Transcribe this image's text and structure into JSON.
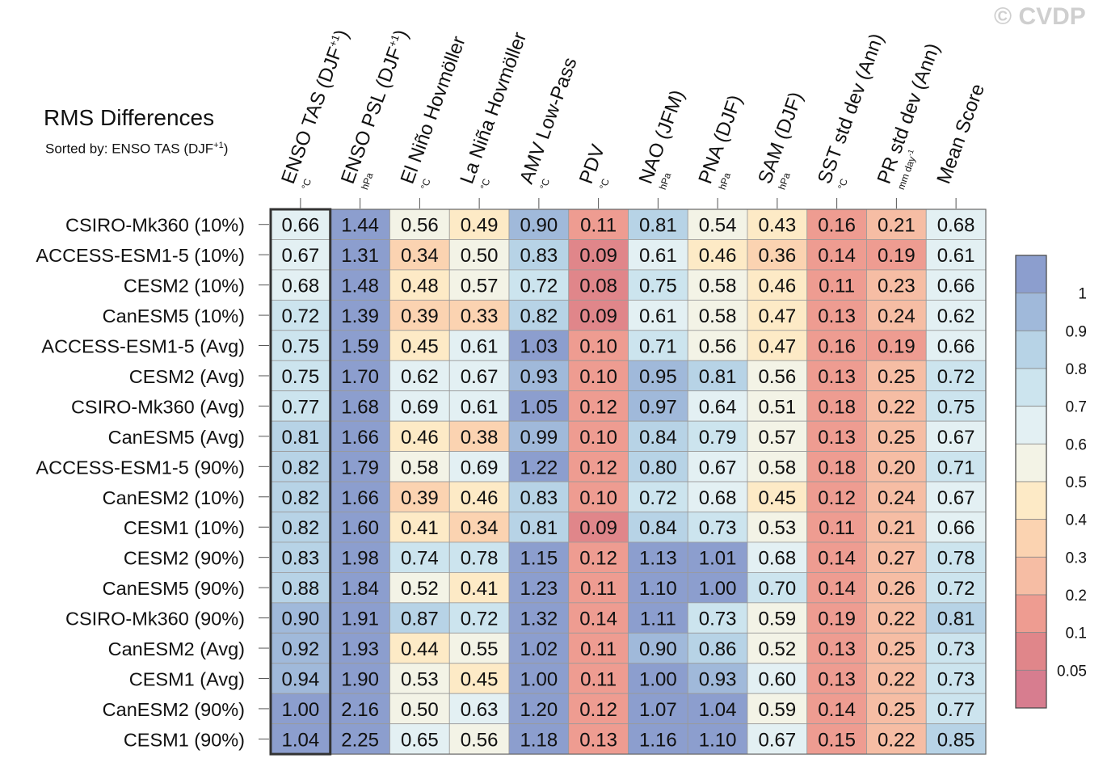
{
  "watermark": "© CVDP",
  "title": "RMS Differences",
  "subtitle": {
    "prefix": "Sorted by: ENSO TAS (DJF",
    "sup": "+1",
    "suffix": ")"
  },
  "chart_data": {
    "type": "heatmap",
    "title": "RMS Differences",
    "columns": [
      {
        "name": "ENSO TAS (DJF",
        "sup": "+1",
        "close": ")",
        "unit": "°C"
      },
      {
        "name": "ENSO PSL (DJF",
        "sup": "+1",
        "close": ")",
        "unit": "hPa"
      },
      {
        "name": "El Niño Hovmöller",
        "unit": "°C"
      },
      {
        "name": "La Niña Hovmöller",
        "unit": "°C"
      },
      {
        "name": "AMV Low-Pass",
        "unit": "°C"
      },
      {
        "name": "PDV",
        "unit": "°C"
      },
      {
        "name": "NAO (JFM)",
        "unit": "hPa"
      },
      {
        "name": "PNA (DJF)",
        "unit": "hPa"
      },
      {
        "name": "SAM (DJF)",
        "unit": "hPa"
      },
      {
        "name": "SST std dev (Ann)",
        "unit": "°C"
      },
      {
        "name": "PR std dev (Ann)",
        "unit": "mm day",
        "unit_sup": "-1"
      },
      {
        "name": "Mean Score",
        "unit": ""
      }
    ],
    "rows": [
      {
        "label": "CSIRO-Mk360 (10%)",
        "values": [
          "0.66",
          "1.44",
          "0.56",
          "0.49",
          "0.90",
          "0.11",
          "0.81",
          "0.54",
          "0.43",
          "0.16",
          "0.21",
          "0.68"
        ]
      },
      {
        "label": "ACCESS-ESM1-5 (10%)",
        "values": [
          "0.67",
          "1.31",
          "0.34",
          "0.50",
          "0.83",
          "0.09",
          "0.61",
          "0.46",
          "0.36",
          "0.14",
          "0.19",
          "0.61"
        ]
      },
      {
        "label": "CESM2 (10%)",
        "values": [
          "0.68",
          "1.48",
          "0.48",
          "0.57",
          "0.72",
          "0.08",
          "0.75",
          "0.58",
          "0.46",
          "0.11",
          "0.23",
          "0.66"
        ]
      },
      {
        "label": "CanESM5 (10%)",
        "values": [
          "0.72",
          "1.39",
          "0.39",
          "0.33",
          "0.82",
          "0.09",
          "0.61",
          "0.58",
          "0.47",
          "0.13",
          "0.24",
          "0.62"
        ]
      },
      {
        "label": "ACCESS-ESM1-5 (Avg)",
        "values": [
          "0.75",
          "1.59",
          "0.45",
          "0.61",
          "1.03",
          "0.10",
          "0.71",
          "0.56",
          "0.47",
          "0.16",
          "0.19",
          "0.66"
        ]
      },
      {
        "label": "CESM2 (Avg)",
        "values": [
          "0.75",
          "1.70",
          "0.62",
          "0.67",
          "0.93",
          "0.10",
          "0.95",
          "0.81",
          "0.56",
          "0.13",
          "0.25",
          "0.72"
        ]
      },
      {
        "label": "CSIRO-Mk360 (Avg)",
        "values": [
          "0.77",
          "1.68",
          "0.69",
          "0.61",
          "1.05",
          "0.12",
          "0.97",
          "0.64",
          "0.51",
          "0.18",
          "0.22",
          "0.75"
        ]
      },
      {
        "label": "CanESM5 (Avg)",
        "values": [
          "0.81",
          "1.66",
          "0.46",
          "0.38",
          "0.99",
          "0.10",
          "0.84",
          "0.79",
          "0.57",
          "0.13",
          "0.25",
          "0.67"
        ]
      },
      {
        "label": "ACCESS-ESM1-5 (90%)",
        "values": [
          "0.82",
          "1.79",
          "0.58",
          "0.69",
          "1.22",
          "0.12",
          "0.80",
          "0.67",
          "0.58",
          "0.18",
          "0.20",
          "0.71"
        ]
      },
      {
        "label": "CanESM2 (10%)",
        "values": [
          "0.82",
          "1.66",
          "0.39",
          "0.46",
          "0.83",
          "0.10",
          "0.72",
          "0.68",
          "0.45",
          "0.12",
          "0.24",
          "0.67"
        ]
      },
      {
        "label": "CESM1 (10%)",
        "values": [
          "0.82",
          "1.60",
          "0.41",
          "0.34",
          "0.81",
          "0.09",
          "0.84",
          "0.73",
          "0.53",
          "0.11",
          "0.21",
          "0.66"
        ]
      },
      {
        "label": "CESM2 (90%)",
        "values": [
          "0.83",
          "1.98",
          "0.74",
          "0.78",
          "1.15",
          "0.12",
          "1.13",
          "1.01",
          "0.68",
          "0.14",
          "0.27",
          "0.78"
        ]
      },
      {
        "label": "CanESM5 (90%)",
        "values": [
          "0.88",
          "1.84",
          "0.52",
          "0.41",
          "1.23",
          "0.11",
          "1.10",
          "1.00",
          "0.70",
          "0.14",
          "0.26",
          "0.72"
        ]
      },
      {
        "label": "CSIRO-Mk360 (90%)",
        "values": [
          "0.90",
          "1.91",
          "0.87",
          "0.72",
          "1.32",
          "0.14",
          "1.11",
          "0.73",
          "0.59",
          "0.19",
          "0.22",
          "0.81"
        ]
      },
      {
        "label": "CanESM2 (Avg)",
        "values": [
          "0.92",
          "1.93",
          "0.44",
          "0.55",
          "1.02",
          "0.11",
          "0.90",
          "0.86",
          "0.52",
          "0.13",
          "0.25",
          "0.73"
        ]
      },
      {
        "label": "CESM1 (Avg)",
        "values": [
          "0.94",
          "1.90",
          "0.53",
          "0.45",
          "1.00",
          "0.11",
          "1.00",
          "0.93",
          "0.60",
          "0.13",
          "0.22",
          "0.73"
        ]
      },
      {
        "label": "CanESM2 (90%)",
        "values": [
          "1.00",
          "2.16",
          "0.50",
          "0.63",
          "1.20",
          "0.12",
          "1.07",
          "1.04",
          "0.59",
          "0.14",
          "0.25",
          "0.77"
        ]
      },
      {
        "label": "CESM1 (90%)",
        "values": [
          "1.04",
          "2.25",
          "0.65",
          "0.56",
          "1.18",
          "0.13",
          "1.16",
          "1.10",
          "0.67",
          "0.15",
          "0.22",
          "0.85"
        ]
      }
    ],
    "sorted_column": 0,
    "colorbar": {
      "levels": [
        "1",
        "0.9",
        "0.8",
        "0.7",
        "0.6",
        "0.5",
        "0.4",
        "0.3",
        "0.2",
        "0.1",
        "0.05"
      ],
      "thresholds": [
        0.05,
        0.1,
        0.2,
        0.3,
        0.4,
        0.5,
        0.6,
        0.7,
        0.8,
        0.9,
        1.0
      ],
      "colors": [
        "#d77d8f",
        "#e0868a",
        "#ee9c91",
        "#f6bda4",
        "#fbd3b1",
        "#fdeac6",
        "#f3f3e6",
        "#e3f0f3",
        "#cce4ee",
        "#b7d3e6",
        "#a0b9da",
        "#8c9ece"
      ]
    }
  }
}
